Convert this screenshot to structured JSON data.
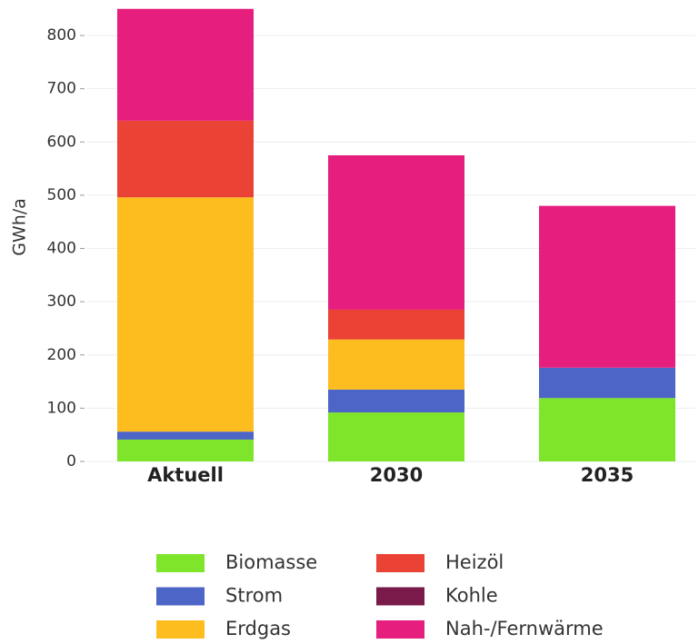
{
  "chart_data": {
    "type": "stacked_bar",
    "y_label": "GWh/a",
    "categories": [
      "Aktuell",
      "2030",
      "2035"
    ],
    "series": [
      {
        "name": "Biomasse",
        "color": "#7fe52a",
        "values": [
          41,
          92,
          119
        ]
      },
      {
        "name": "Strom",
        "color": "#4c65c6",
        "values": [
          15,
          43,
          57
        ]
      },
      {
        "name": "Erdgas",
        "color": "#fdbd1e",
        "values": [
          440,
          94,
          0
        ]
      },
      {
        "name": "Heizöl",
        "color": "#ea4335",
        "values": [
          144,
          56,
          0
        ]
      },
      {
        "name": "Kohle",
        "color": "#7a1a4a",
        "values": [
          0,
          0,
          0
        ]
      },
      {
        "name": "Nah-/Fernwärme",
        "color": "#e61f7e",
        "values": [
          210,
          290,
          304
        ]
      }
    ],
    "ylim": [
      0,
      853
    ],
    "yticks": [
      0,
      100,
      200,
      300,
      400,
      500,
      600,
      700,
      800
    ],
    "grid": true,
    "legend": "bottom"
  }
}
